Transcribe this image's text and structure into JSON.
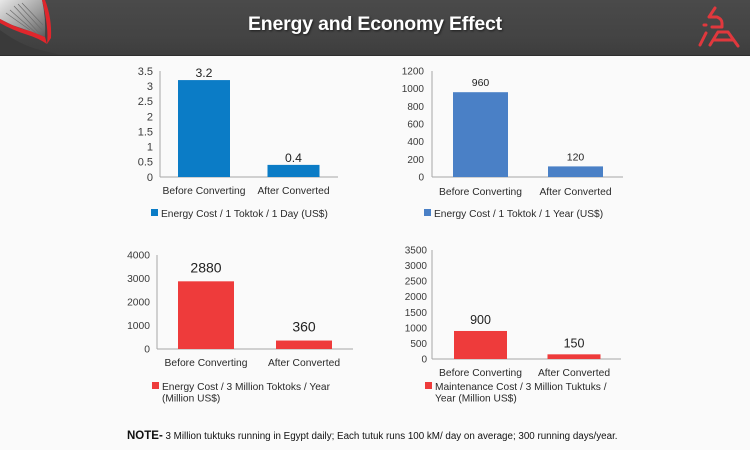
{
  "header": {
    "title": "Energy and Economy Effect",
    "decoration_icon": "skyscraper-ribbon-graphic",
    "logo_icon": "spa-logo-icon",
    "accent_color": "#e0383d"
  },
  "chart_data": [
    {
      "type": "bar",
      "title": "",
      "xlabel": "",
      "ylabel": "",
      "categories": [
        "Before Converting",
        "After Converted"
      ],
      "series": [
        {
          "name": "Energy Cost / 1 Toktok / 1 Day (US$)",
          "values": [
            3.2,
            0.4
          ],
          "color": "#0b7cc6"
        }
      ],
      "value_labels": [
        "3.2",
        "0.4"
      ],
      "ylim": [
        0,
        3.5
      ],
      "y_ticks": [
        0,
        0.5,
        1,
        1.5,
        2,
        2.5,
        3,
        3.5
      ],
      "y_tick_labels": [
        "0",
        "0.5",
        "1",
        "1.5",
        "2",
        "2.5",
        "3",
        "3.5"
      ],
      "legend_lines": [
        "Energy Cost / 1 Toktok / 1 Day (US$)"
      ],
      "legend_position": "bottom",
      "grid": false
    },
    {
      "type": "bar",
      "title": "",
      "xlabel": "",
      "ylabel": "",
      "categories": [
        "Before Converting",
        "After Converted"
      ],
      "series": [
        {
          "name": "Energy Cost / 1 Toktok / 1 Year (US$)",
          "values": [
            960,
            120
          ],
          "color": "#4a80c6"
        }
      ],
      "value_labels": [
        "960",
        "120"
      ],
      "ylim": [
        0,
        1200
      ],
      "y_ticks": [
        0,
        200,
        400,
        600,
        800,
        1000,
        1200
      ],
      "y_tick_labels": [
        "0",
        "200",
        "400",
        "600",
        "800",
        "1000",
        "1200"
      ],
      "legend_lines": [
        "Energy Cost / 1 Toktok / 1 Year (US$)"
      ],
      "legend_position": "bottom",
      "grid": false
    },
    {
      "type": "bar",
      "title": "",
      "xlabel": "",
      "ylabel": "",
      "categories": [
        "Before Converting",
        "After Converted"
      ],
      "series": [
        {
          "name": "Energy Cost / 3 Million Toktoks / Year (Million US$)",
          "values": [
            2880,
            360
          ],
          "color": "#ee3b3b"
        }
      ],
      "value_labels": [
        "2880",
        "360"
      ],
      "ylim": [
        0,
        4000
      ],
      "y_ticks": [
        0,
        1000,
        2000,
        3000,
        4000
      ],
      "y_tick_labels": [
        "0",
        "1000",
        "2000",
        "3000",
        "4000"
      ],
      "legend_lines": [
        "Energy Cost / 3 Million Toktoks / Year",
        "(Million US$)"
      ],
      "legend_position": "bottom",
      "grid": false
    },
    {
      "type": "bar",
      "title": "",
      "xlabel": "",
      "ylabel": "",
      "categories": [
        "Before Converting",
        "After Converted"
      ],
      "series": [
        {
          "name": "Maintenance Cost / 3 Million Tuktuks / Year (Million US$)",
          "values": [
            900,
            150
          ],
          "color": "#ee3b3b"
        }
      ],
      "value_labels": [
        "900",
        "150"
      ],
      "ylim": [
        0,
        3500
      ],
      "y_ticks": [
        0,
        500,
        1000,
        1500,
        2000,
        2500,
        3000,
        3500
      ],
      "y_tick_labels": [
        "0",
        "500",
        "1000",
        "1500",
        "2000",
        "2500",
        "3000",
        "3500"
      ],
      "legend_lines": [
        "Maintenance Cost / 3 Million Tuktuks /",
        "Year (Million US$)"
      ],
      "legend_position": "bottom",
      "grid": false
    }
  ],
  "note": {
    "label": "NOTE-",
    "text": " 3 Million tuktuks running in Egypt daily; Each tutuk runs 100 kM/ day on average; 300 running days/year."
  }
}
